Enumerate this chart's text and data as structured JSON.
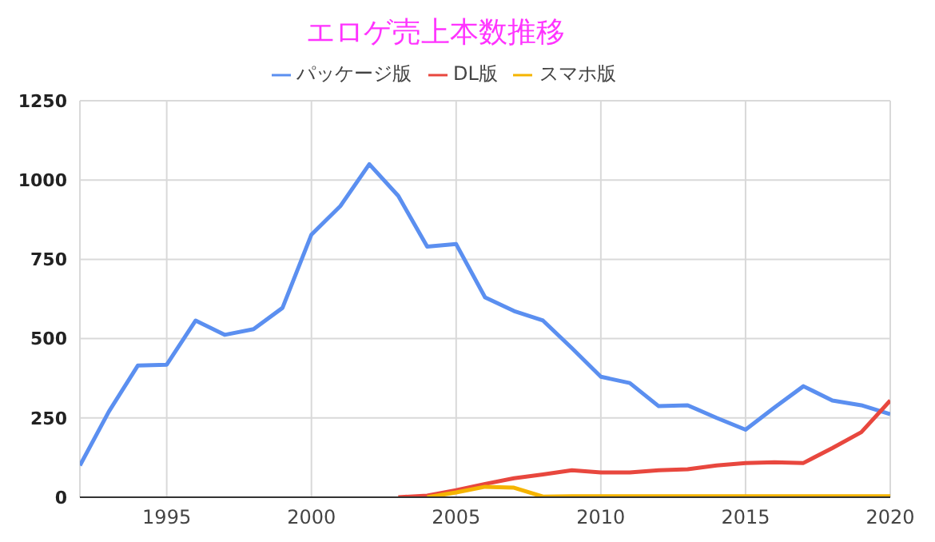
{
  "chart_data": {
    "type": "line",
    "title": "エロゲ売上本数推移",
    "x": [
      1992,
      1993,
      1994,
      1995,
      1996,
      1997,
      1998,
      1999,
      2000,
      2001,
      2002,
      2003,
      2004,
      2005,
      2006,
      2007,
      2008,
      2009,
      2010,
      2011,
      2012,
      2013,
      2014,
      2015,
      2016,
      2017,
      2018,
      2019,
      2020
    ],
    "series": [
      {
        "name": "パッケージ版",
        "color": "#5b8ff0",
        "values": [
          100,
          270,
          415,
          418,
          557,
          512,
          530,
          597,
          828,
          918,
          1050,
          950,
          790,
          798,
          630,
          587,
          557,
          470,
          380,
          360,
          287,
          290,
          250,
          213,
          283,
          350,
          305,
          290,
          262
        ]
      },
      {
        "name": "DL版",
        "color": "#e8473e",
        "values": [
          null,
          null,
          null,
          null,
          null,
          null,
          null,
          null,
          null,
          null,
          null,
          0,
          5,
          22,
          42,
          60,
          72,
          85,
          78,
          78,
          85,
          88,
          100,
          108,
          110,
          108,
          155,
          205,
          305
        ]
      },
      {
        "name": "スマホ版",
        "color": "#f5b400",
        "values": [
          null,
          null,
          null,
          null,
          null,
          null,
          null,
          null,
          null,
          null,
          null,
          null,
          0,
          15,
          33,
          30,
          2,
          3,
          3,
          3,
          3,
          3,
          3,
          3,
          3,
          3,
          3,
          3,
          3
        ]
      }
    ],
    "xlim": [
      1992,
      2020
    ],
    "xticks": [
      1995,
      2000,
      2005,
      2010,
      2015,
      2020
    ],
    "ylim": [
      0,
      1250
    ],
    "yticks": [
      0,
      250,
      500,
      750,
      1000,
      1250
    ],
    "grid": true,
    "legend": "top",
    "marker": "none"
  }
}
